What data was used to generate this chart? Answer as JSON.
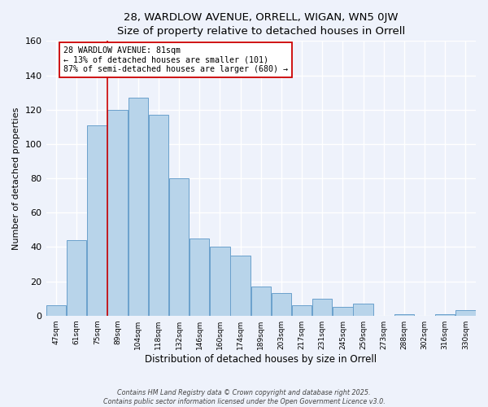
{
  "title": "28, WARDLOW AVENUE, ORRELL, WIGAN, WN5 0JW",
  "subtitle": "Size of property relative to detached houses in Orrell",
  "xlabel": "Distribution of detached houses by size in Orrell",
  "ylabel": "Number of detached properties",
  "categories": [
    "47sqm",
    "61sqm",
    "75sqm",
    "89sqm",
    "104sqm",
    "118sqm",
    "132sqm",
    "146sqm",
    "160sqm",
    "174sqm",
    "189sqm",
    "203sqm",
    "217sqm",
    "231sqm",
    "245sqm",
    "259sqm",
    "273sqm",
    "288sqm",
    "302sqm",
    "316sqm",
    "330sqm"
  ],
  "values": [
    6,
    44,
    111,
    120,
    127,
    117,
    80,
    45,
    40,
    35,
    17,
    13,
    6,
    10,
    5,
    7,
    0,
    1,
    0,
    1,
    3
  ],
  "bar_color": "#b8d4ea",
  "bar_edge_color": "#6aa0cc",
  "vline_x_index": 2,
  "vline_color": "#cc0000",
  "annotation_title": "28 WARDLOW AVENUE: 81sqm",
  "annotation_line1": "← 13% of detached houses are smaller (101)",
  "annotation_line2": "87% of semi-detached houses are larger (680) →",
  "annotation_box_color": "#ffffff",
  "annotation_box_edge": "#cc0000",
  "ylim": [
    0,
    160
  ],
  "yticks": [
    0,
    20,
    40,
    60,
    80,
    100,
    120,
    140,
    160
  ],
  "background_color": "#eef2fb",
  "footer_line1": "Contains HM Land Registry data © Crown copyright and database right 2025.",
  "footer_line2": "Contains public sector information licensed under the Open Government Licence v3.0."
}
